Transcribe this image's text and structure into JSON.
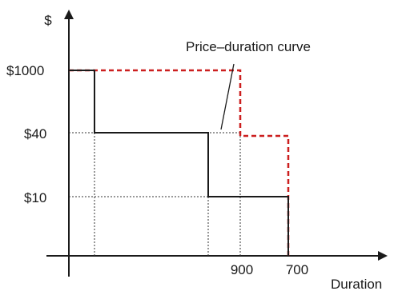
{
  "chart_data": {
    "type": "line",
    "title": "",
    "xlabel": "Duration",
    "ylabel": "$",
    "y_tick_labels": [
      "$1000",
      "$40",
      "$10"
    ],
    "x_tick_labels": [
      "900",
      "700"
    ],
    "annotations": [
      {
        "text": "Price–duration curve"
      }
    ],
    "series": [
      {
        "style": "solid",
        "color": "#1a1a1a",
        "steps": [
          {
            "price": "$1000",
            "to": "start"
          },
          {
            "price": "$40",
            "to": "start"
          },
          {
            "price": "$10",
            "to": "900"
          }
        ]
      },
      {
        "style": "dashed",
        "color": "#cc1f1f",
        "steps": [
          {
            "price": "$1000",
            "to": "900"
          },
          {
            "price": "$40",
            "to": "700"
          }
        ]
      }
    ],
    "grid": false
  }
}
